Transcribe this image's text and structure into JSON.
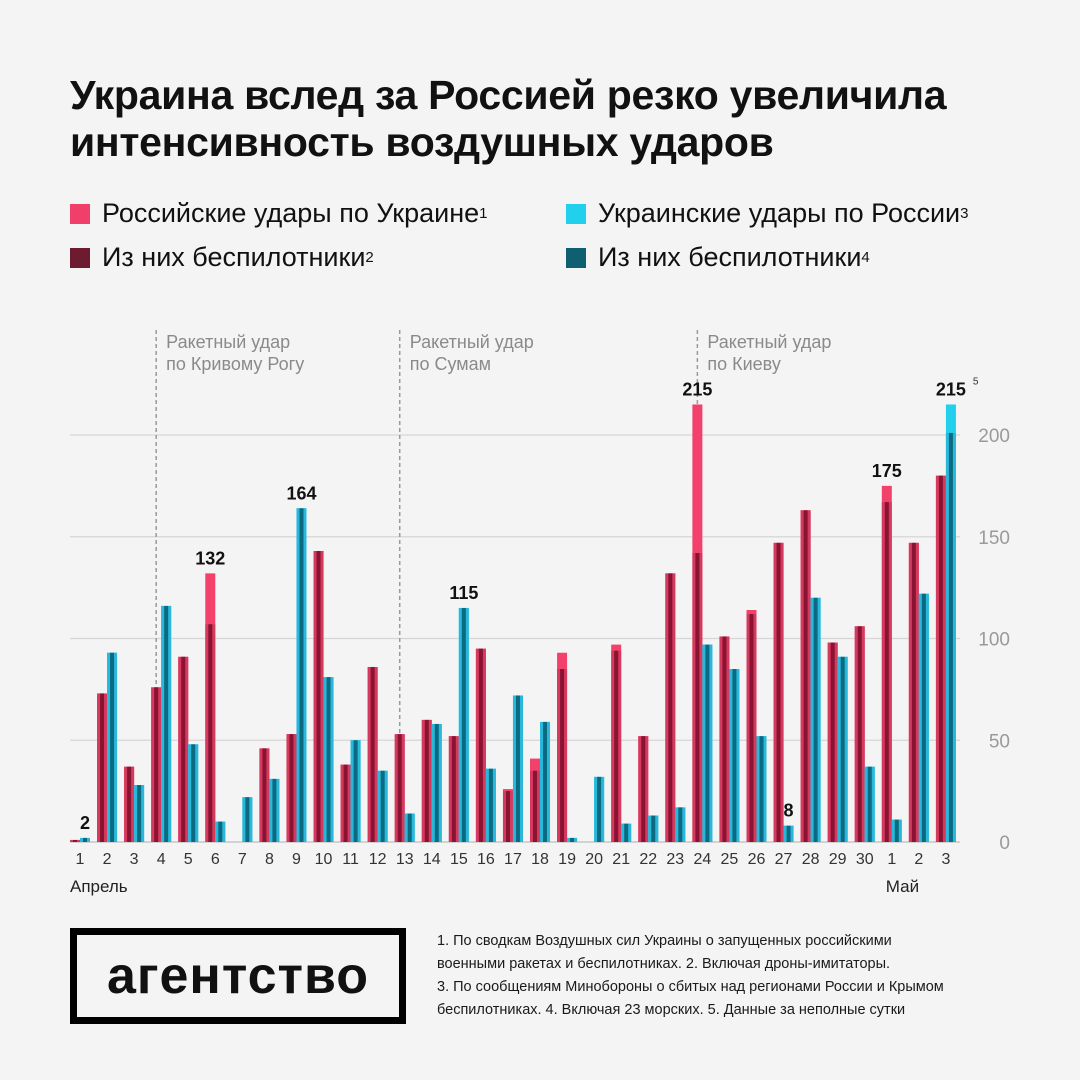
{
  "title_lines": [
    "Украина вслед за Россией резко увеличила",
    "интенсивность воздушных ударов"
  ],
  "legend": [
    {
      "label": "Российские удары по Украине",
      "sup": "1",
      "color": "#f0406a"
    },
    {
      "label": "Из них беспилотники",
      "sup": "2",
      "color": "#6e1a30"
    },
    {
      "label": "Украинские удары по России",
      "sup": "3",
      "color": "#22d0ee"
    },
    {
      "label": "Из них беспилотники",
      "sup": "4",
      "color": "#0f5e72"
    }
  ],
  "chart_data": {
    "type": "bar",
    "categories": [
      "1",
      "2",
      "3",
      "4",
      "5",
      "6",
      "7",
      "8",
      "9",
      "10",
      "11",
      "12",
      "13",
      "14",
      "15",
      "16",
      "17",
      "18",
      "19",
      "20",
      "21",
      "22",
      "23",
      "24",
      "25",
      "26",
      "27",
      "28",
      "29",
      "30",
      "1",
      "2",
      "3"
    ],
    "month_labels": [
      {
        "label": "Апрель",
        "category_index": 0
      },
      {
        "label": "Май",
        "category_index": 30
      }
    ],
    "series": [
      {
        "name": "Российские удары по Украине",
        "color": "#f0406a",
        "values": [
          1,
          73,
          37,
          76,
          91,
          132,
          0,
          46,
          53,
          143,
          38,
          86,
          53,
          60,
          52,
          95,
          26,
          41,
          93,
          0,
          97,
          52,
          132,
          215,
          101,
          114,
          147,
          163,
          98,
          106,
          175,
          147,
          180
        ]
      },
      {
        "name": "Из них беспилотники",
        "color": "#8a1232",
        "values": [
          1,
          73,
          37,
          76,
          91,
          107,
          0,
          46,
          53,
          143,
          38,
          86,
          53,
          60,
          52,
          95,
          25,
          35,
          85,
          0,
          94,
          52,
          132,
          142,
          101,
          112,
          147,
          163,
          98,
          106,
          167,
          147,
          180
        ]
      },
      {
        "name": "Украинские удары по России",
        "color": "#22d0ee",
        "values": [
          2,
          93,
          28,
          116,
          48,
          10,
          22,
          31,
          164,
          81,
          50,
          35,
          14,
          58,
          115,
          36,
          72,
          59,
          2,
          32,
          9,
          13,
          17,
          97,
          85,
          52,
          8,
          120,
          91,
          37,
          11,
          122,
          215
        ]
      },
      {
        "name": "Из них беспилотники",
        "color": "#0f5e72",
        "values": [
          2,
          93,
          28,
          116,
          48,
          10,
          22,
          31,
          164,
          81,
          50,
          35,
          14,
          58,
          115,
          36,
          72,
          59,
          2,
          32,
          9,
          13,
          17,
          97,
          85,
          52,
          8,
          120,
          91,
          37,
          11,
          122,
          201
        ]
      }
    ],
    "data_labels": [
      {
        "category_index": 0,
        "series": 2,
        "text": "2"
      },
      {
        "category_index": 5,
        "series": 0,
        "text": "132"
      },
      {
        "category_index": 8,
        "series": 2,
        "text": "164"
      },
      {
        "category_index": 14,
        "series": 2,
        "text": "115"
      },
      {
        "category_index": 23,
        "series": 0,
        "text": "215"
      },
      {
        "category_index": 26,
        "series": 2,
        "text": "8"
      },
      {
        "category_index": 30,
        "series": 0,
        "text": "175"
      },
      {
        "category_index": 32,
        "series": 2,
        "text": "215",
        "sup": "5"
      }
    ],
    "annotations": [
      {
        "category_index": 3,
        "lines": [
          "Ракетный удар",
          "по Кривому Рогу"
        ]
      },
      {
        "category_index": 12,
        "lines": [
          "Ракетный удар",
          "по Сумам"
        ]
      },
      {
        "category_index": 23,
        "lines": [
          "Ракетный удар",
          "по Киеву"
        ]
      }
    ],
    "yticks": [
      0,
      50,
      100,
      150,
      200
    ],
    "ylim": [
      0,
      220
    ],
    "grid": true,
    "y_axis_side": "right",
    "legend_placement": "top"
  },
  "logo_text": "агентство",
  "notes": [
    "1. По сводкам Воздушных сил Украины о запущенных российскими",
    "военными ракетах и беспилотниках. 2. Включая дроны-имитаторы.",
    "3. По сообщениям Минобороны о сбитых над регионами России и Крымом",
    "беспилотниках. 4. Включая 23 морских. 5. Данные за неполные сутки"
  ]
}
